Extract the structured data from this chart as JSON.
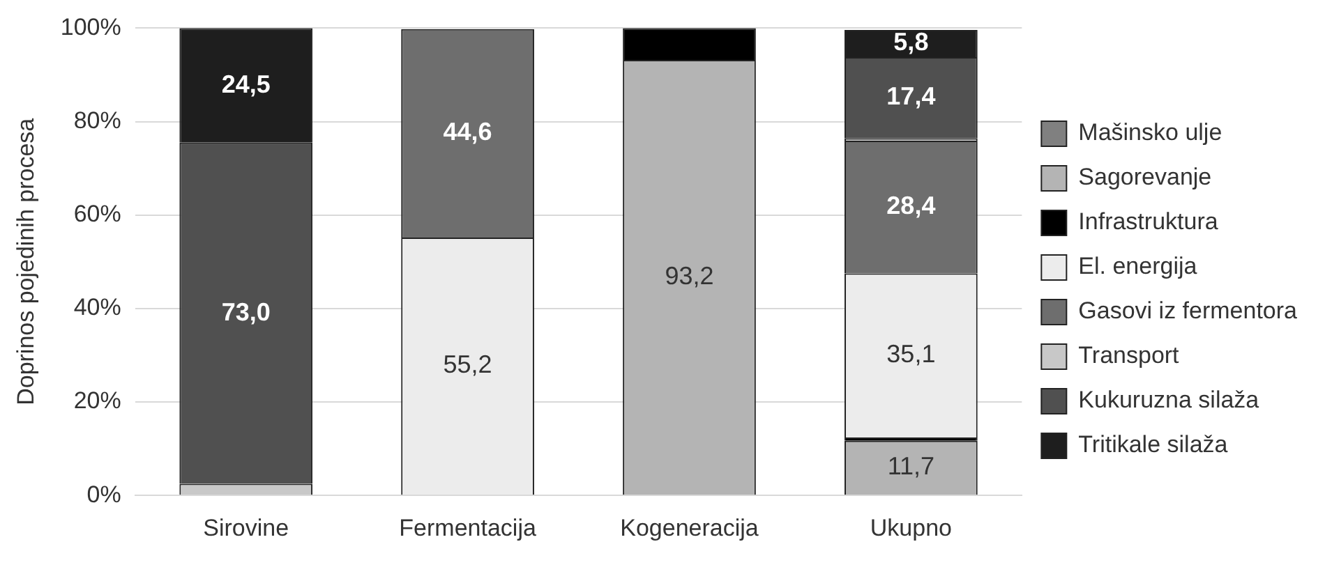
{
  "chart_data": {
    "type": "bar",
    "stacked": true,
    "ylabel": "Doprinos pojedinih procesa",
    "categories": [
      "Sirovine",
      "Fermentacija",
      "Kogeneracija",
      "Ukupno"
    ],
    "series": [
      {
        "name": "Mašinsko ulje",
        "color": "#808080",
        "values": [
          null,
          null,
          null,
          null
        ]
      },
      {
        "name": "Sagorevanje",
        "color": "#b4b4b4",
        "values": [
          null,
          null,
          93.2,
          11.7
        ],
        "value_labels": [
          null,
          null,
          "93,2",
          "11,7"
        ]
      },
      {
        "name": "Infrastruktura",
        "color": "#000000",
        "values": [
          null,
          null,
          6.8,
          0.7
        ]
      },
      {
        "name": "El. energija",
        "color": "#ececec",
        "values": [
          null,
          55.2,
          null,
          35.1
        ],
        "value_labels": [
          null,
          "55,2",
          null,
          "35,1"
        ]
      },
      {
        "name": "Gasovi iz fermentora",
        "color": "#6e6e6e",
        "values": [
          null,
          44.6,
          null,
          28.4
        ],
        "value_labels": [
          null,
          "44,6",
          null,
          "28,4"
        ]
      },
      {
        "name": "Transport",
        "color": "#c8c8c8",
        "values": [
          2.5,
          null,
          null,
          0.5
        ]
      },
      {
        "name": "Kukuruzna silaža",
        "color": "#505050",
        "values": [
          73.0,
          null,
          null,
          17.4
        ],
        "value_labels": [
          "73,0",
          null,
          null,
          "17,4"
        ]
      },
      {
        "name": "Tritikale silaža",
        "color": "#1e1e1e",
        "values": [
          24.5,
          null,
          null,
          5.8
        ],
        "value_labels": [
          "24,5",
          null,
          null,
          "5,8"
        ]
      }
    ],
    "ylim": [
      0,
      100
    ],
    "yticks": [
      {
        "value": 0,
        "label": "0%"
      },
      {
        "value": 20,
        "label": "20%"
      },
      {
        "value": 40,
        "label": "40%"
      },
      {
        "value": 60,
        "label": "60%"
      },
      {
        "value": 80,
        "label": "80%"
      },
      {
        "value": 100,
        "label": "100%"
      }
    ],
    "grid": "y",
    "legend": "right"
  }
}
